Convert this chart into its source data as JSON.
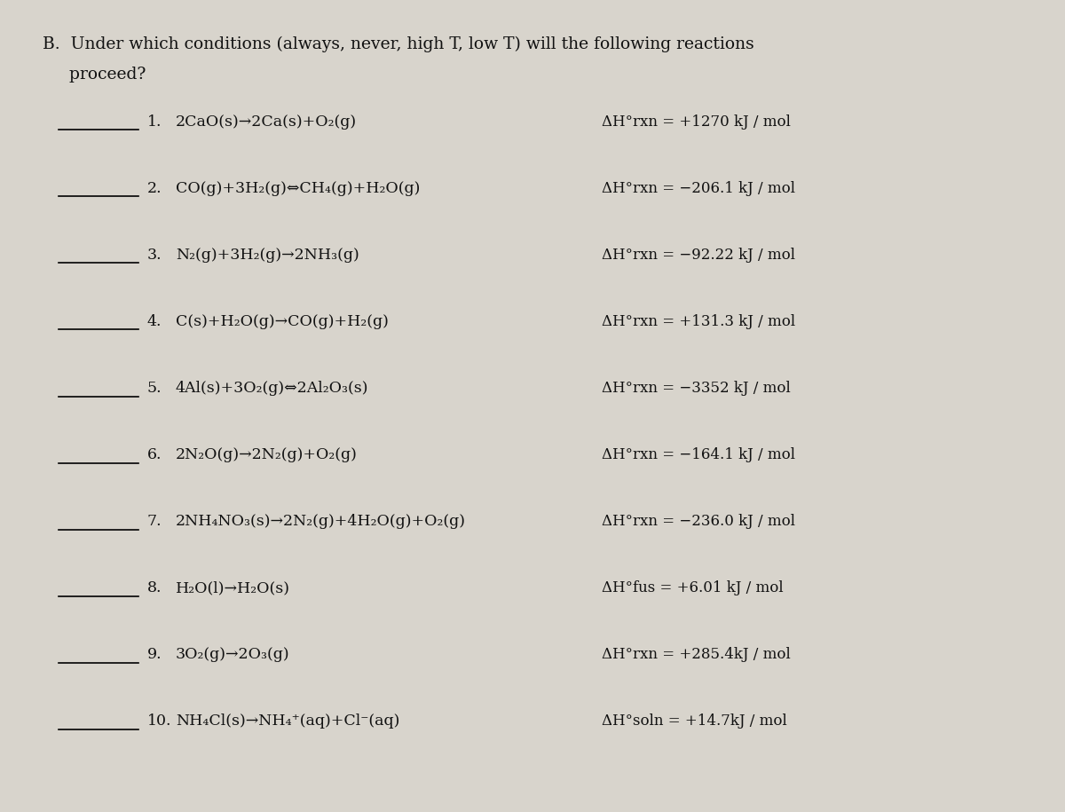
{
  "title_line1": "B.  Under which conditions (always, never, high T, low T) will the following reactions",
  "title_line2": "     proceed?",
  "bg_color": "#d8d4cc",
  "reactions": [
    {
      "num": "1.",
      "equation": "2CaO(s)→2Ca(s)+O₂(g)",
      "equation_parts": [
        {
          "text": "2CaO(s)",
          "style": "normal"
        },
        {
          "text": "→",
          "style": "normal"
        },
        {
          "text": "2Ca(s)+O",
          "style": "normal"
        },
        {
          "text": "2",
          "style": "sub"
        },
        {
          "text": "(g)",
          "style": "normal"
        }
      ],
      "delta_h": "ΔH°",
      "subscript": "rxn",
      "value": " = +1270 kJ / mol",
      "dh_label": "ΔH°rxn = +1270 kJ / mol"
    },
    {
      "num": "2.",
      "equation": "CO(g)+3H₂(g)⇔CH₄(g)+H₂O(g)",
      "dh_label": "ΔH°rxn = −206.1 kJ / mol"
    },
    {
      "num": "3.",
      "equation": "N₂(g)+3H₂(g)→2NH₃(g)",
      "dh_label": "ΔH°rxn = −92.22 kJ / mol"
    },
    {
      "num": "4.",
      "equation": "C(s)+H₂O(g)→CO(g)+H₂(g)",
      "dh_label": "ΔH°rxn = +131.3 kJ / mol"
    },
    {
      "num": "5.",
      "equation": "4Al(s)+3O₂(g)⇔2Al₂O₃(s)",
      "dh_label": "ΔH°rxn = −3352 kJ / mol"
    },
    {
      "num": "6.",
      "equation": "2N₂O(g)→2N₂(g)+O₂(g)",
      "dh_label": "ΔH°rxn = −164.1 kJ / mol"
    },
    {
      "num": "7.",
      "equation": "2NH₄NO₃(s)→2N₂(g)+4H₂O(g)+O₂(g)",
      "dh_label": "ΔH°rxn = −236.0 kJ / mol"
    },
    {
      "num": "8.",
      "equation": "H₂O(l)→H₂O(s)",
      "dh_label": "ΔH°fus = +6.01 kJ / mol"
    },
    {
      "num": "9.",
      "equation": "3O₂(g)→2O₃(g)",
      "dh_label": "ΔH°rxn = +285.4kJ / mol"
    },
    {
      "num": "10.",
      "equation": "NH₄Cl(s)→NH₄⁺(aq)+Cl⁻(aq)",
      "dh_label": "ΔH°soln = +14.7kJ / mol"
    }
  ],
  "line_color": "#000000",
  "text_color": "#111111",
  "font_size_title": 13.5,
  "font_size_reaction": 12.5,
  "font_size_dh": 12.0
}
